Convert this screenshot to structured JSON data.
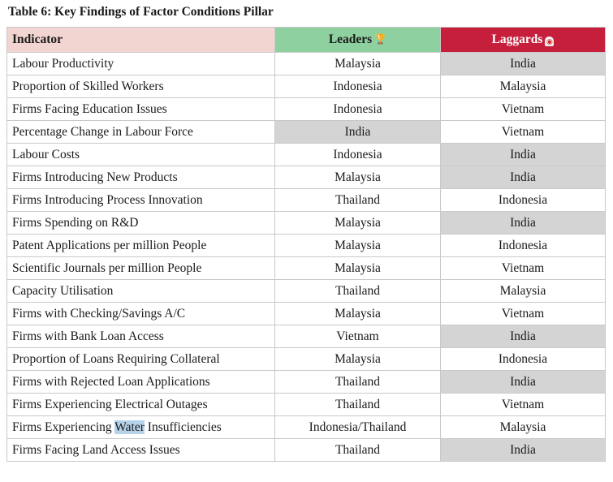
{
  "table": {
    "title": "Table 6: Key Findings of Factor Conditions Pillar",
    "headers": {
      "indicator": "Indicator",
      "leaders": "Leaders",
      "laggards": "Laggards"
    },
    "header_icons": {
      "leaders": "trophy-icon",
      "laggards": "siren-icon",
      "leaders_glyph": "🏆",
      "laggards_glyph": "◉"
    },
    "colors": {
      "indicator_header_bg": "#f2d4d0",
      "leaders_header_bg": "#8fd0a0",
      "laggards_header_bg": "#c51f3c",
      "laggards_header_text": "#ffffff",
      "highlight_cell_bg": "#d4d4d4",
      "text_highlight": "#b7d3ea"
    },
    "rows": [
      {
        "indicator": "Labour Productivity",
        "leader": "Malaysia",
        "laggard": "India",
        "leader_shaded": false,
        "laggard_shaded": true
      },
      {
        "indicator": "Proportion of Skilled Workers",
        "leader": "Indonesia",
        "laggard": "Malaysia",
        "leader_shaded": false,
        "laggard_shaded": false
      },
      {
        "indicator": "Firms Facing Education Issues",
        "leader": "Indonesia",
        "laggard": "Vietnam",
        "leader_shaded": false,
        "laggard_shaded": false
      },
      {
        "indicator": "Percentage Change in Labour Force",
        "leader": "India",
        "laggard": "Vietnam",
        "leader_shaded": true,
        "laggard_shaded": false
      },
      {
        "indicator": "Labour Costs",
        "leader": "Indonesia",
        "laggard": "India",
        "leader_shaded": false,
        "laggard_shaded": true
      },
      {
        "indicator": "Firms Introducing New Products",
        "leader": "Malaysia",
        "laggard": "India",
        "leader_shaded": false,
        "laggard_shaded": true
      },
      {
        "indicator": "Firms Introducing Process Innovation",
        "leader": "Thailand",
        "laggard": "Indonesia",
        "leader_shaded": false,
        "laggard_shaded": false
      },
      {
        "indicator": "Firms Spending on R&D",
        "leader": "Malaysia",
        "laggard": "India",
        "leader_shaded": false,
        "laggard_shaded": true
      },
      {
        "indicator": "Patent Applications per million People",
        "leader": "Malaysia",
        "laggard": "Indonesia",
        "leader_shaded": false,
        "laggard_shaded": false
      },
      {
        "indicator": "Scientific Journals per million People",
        "leader": "Malaysia",
        "laggard": "Vietnam",
        "leader_shaded": false,
        "laggard_shaded": false
      },
      {
        "indicator": "Capacity Utilisation",
        "leader": "Thailand",
        "laggard": "Malaysia",
        "leader_shaded": false,
        "laggard_shaded": false
      },
      {
        "indicator": "Firms with Checking/Savings A/C",
        "leader": "Malaysia",
        "laggard": "Vietnam",
        "leader_shaded": false,
        "laggard_shaded": false
      },
      {
        "indicator": "Firms with Bank Loan Access",
        "leader": "Vietnam",
        "laggard": "India",
        "leader_shaded": false,
        "laggard_shaded": true
      },
      {
        "indicator": "Proportion of Loans Requiring Collateral",
        "leader": "Malaysia",
        "laggard": "Indonesia",
        "leader_shaded": false,
        "laggard_shaded": false
      },
      {
        "indicator": "Firms with Rejected Loan Applications",
        "leader": "Thailand",
        "laggard": "India",
        "leader_shaded": false,
        "laggard_shaded": true
      },
      {
        "indicator": "Firms Experiencing Electrical Outages",
        "leader": "Thailand",
        "laggard": "Vietnam",
        "leader_shaded": false,
        "laggard_shaded": false
      },
      {
        "indicator": "Firms Experiencing Water Insufficiencies",
        "leader": "Indonesia/Thailand",
        "laggard": "Malaysia",
        "leader_shaded": false,
        "laggard_shaded": false,
        "indicator_highlight": "Water"
      },
      {
        "indicator": "Firms Facing Land Access Issues",
        "leader": "Thailand",
        "laggard": "India",
        "leader_shaded": false,
        "laggard_shaded": true
      }
    ]
  }
}
